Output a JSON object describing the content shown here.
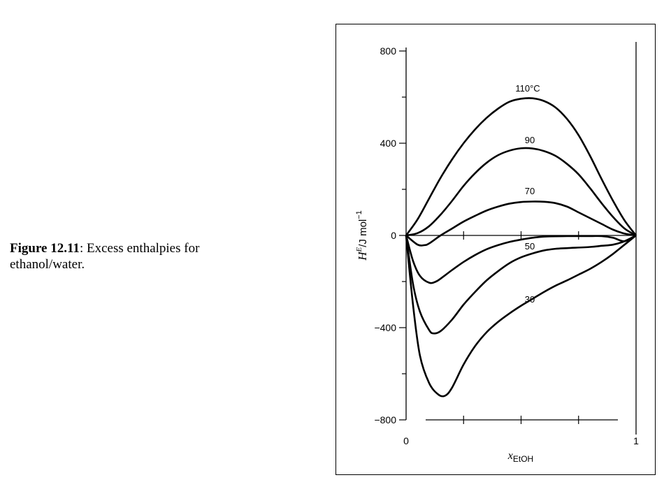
{
  "caption": {
    "figure_number": "Figure 12.11",
    "text": ": Excess enthalpies for ethanol/water."
  },
  "chart_data": {
    "type": "line",
    "title": "",
    "xlabel": "x",
    "xlabel_subscript": "EtOH",
    "ylabel_H": "H",
    "ylabel_E": "E",
    "ylabel_unit": "/J mol",
    "ylabel_exp": "−1",
    "xlim": [
      0,
      1
    ],
    "ylim": [
      -800,
      800
    ],
    "x_ticks": [
      0,
      1
    ],
    "x_tick_labels": [
      "0",
      "1"
    ],
    "y_ticks": [
      800,
      400,
      0,
      -400,
      -800
    ],
    "y_tick_labels": [
      "800",
      "400",
      "0",
      "−400",
      "−800"
    ],
    "grid": false,
    "series": [
      {
        "name": "110°C",
        "x": [
          0,
          0.05,
          0.1,
          0.15,
          0.2,
          0.25,
          0.3,
          0.35,
          0.4,
          0.45,
          0.5,
          0.55,
          0.6,
          0.65,
          0.7,
          0.75,
          0.8,
          0.85,
          0.9,
          0.95,
          1
        ],
        "y": [
          0,
          70,
          160,
          250,
          330,
          400,
          460,
          510,
          550,
          580,
          593,
          595,
          583,
          555,
          505,
          435,
          345,
          245,
          150,
          65,
          0
        ]
      },
      {
        "name": "90",
        "x": [
          0,
          0.05,
          0.1,
          0.15,
          0.2,
          0.25,
          0.3,
          0.35,
          0.4,
          0.45,
          0.5,
          0.55,
          0.6,
          0.65,
          0.7,
          0.75,
          0.8,
          0.85,
          0.9,
          0.95,
          1
        ],
        "y": [
          0,
          10,
          40,
          90,
          150,
          215,
          270,
          315,
          348,
          368,
          378,
          377,
          366,
          345,
          310,
          265,
          205,
          140,
          80,
          30,
          0
        ]
      },
      {
        "name": "70",
        "x": [
          0,
          0.05,
          0.08,
          0.1,
          0.15,
          0.2,
          0.25,
          0.3,
          0.35,
          0.4,
          0.45,
          0.5,
          0.55,
          0.6,
          0.65,
          0.7,
          0.75,
          0.8,
          0.85,
          0.9,
          0.95,
          1
        ],
        "y": [
          0,
          -40,
          -42,
          -35,
          0,
          30,
          60,
          85,
          108,
          125,
          138,
          145,
          147,
          146,
          140,
          125,
          100,
          75,
          50,
          25,
          8,
          0
        ]
      },
      {
        "name": "50",
        "x": [
          0,
          0.03,
          0.06,
          0.1,
          0.13,
          0.16,
          0.2,
          0.25,
          0.3,
          0.35,
          0.4,
          0.45,
          0.5,
          0.55,
          0.6,
          0.7,
          0.8,
          0.85,
          0.9,
          0.95,
          1
        ],
        "y": [
          0,
          -110,
          -175,
          -205,
          -200,
          -180,
          -150,
          -115,
          -85,
          -60,
          -42,
          -28,
          -18,
          -10,
          -5,
          -3,
          -3,
          -3,
          -10,
          -25,
          0
        ]
      },
      {
        "name": "",
        "x": [
          0,
          0.03,
          0.06,
          0.1,
          0.12,
          0.15,
          0.2,
          0.25,
          0.3,
          0.35,
          0.4,
          0.45,
          0.5,
          0.55,
          0.6,
          0.65,
          0.7,
          0.8,
          0.85,
          0.9,
          0.95,
          1
        ],
        "y": [
          0,
          -210,
          -330,
          -410,
          -425,
          -415,
          -365,
          -300,
          -245,
          -195,
          -155,
          -120,
          -95,
          -78,
          -65,
          -58,
          -55,
          -50,
          -45,
          -40,
          -25,
          0
        ]
      },
      {
        "name": "30",
        "x": [
          0,
          0.03,
          0.06,
          0.1,
          0.14,
          0.17,
          0.2,
          0.25,
          0.3,
          0.35,
          0.4,
          0.45,
          0.5,
          0.55,
          0.6,
          0.65,
          0.7,
          0.75,
          0.8,
          0.85,
          0.9,
          0.95,
          1
        ],
        "y": [
          0,
          -300,
          -520,
          -640,
          -690,
          -695,
          -660,
          -560,
          -480,
          -420,
          -375,
          -338,
          -305,
          -275,
          -245,
          -218,
          -195,
          -170,
          -145,
          -115,
          -80,
          -40,
          0
        ]
      }
    ]
  }
}
